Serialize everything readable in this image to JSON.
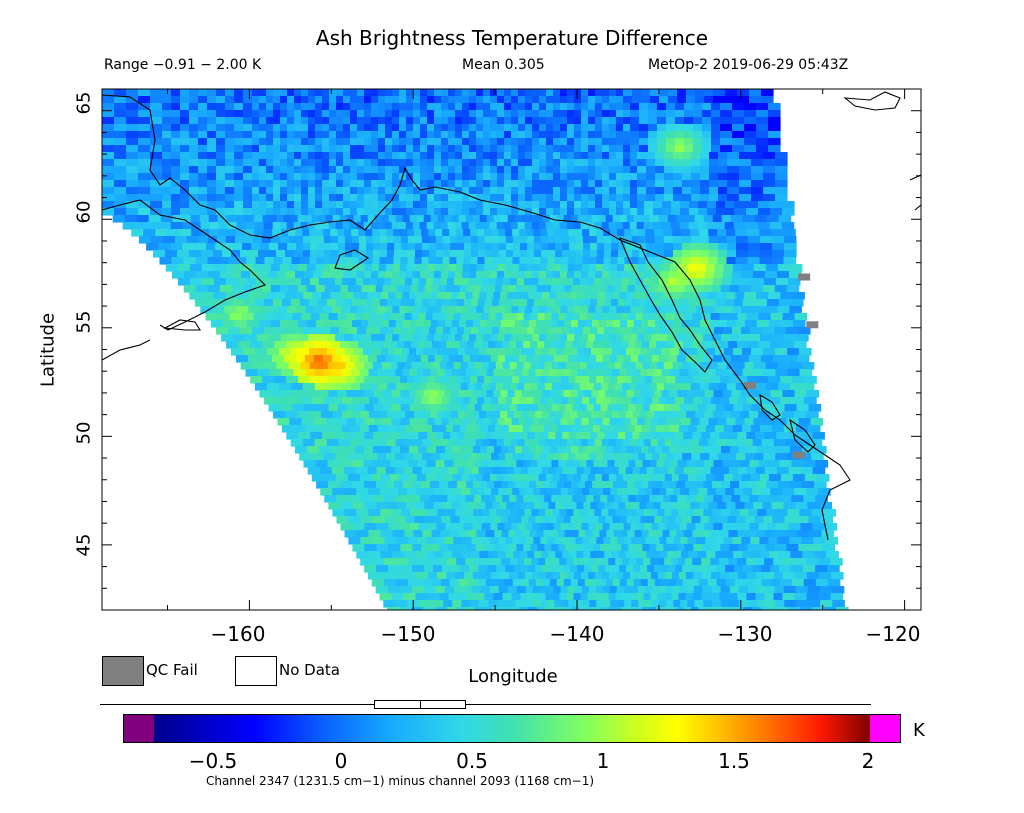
{
  "header": {
    "title": "Ash Brightness Temperature Difference",
    "range": "Range −0.91 − 2.00 K",
    "mean": "Mean 0.305",
    "satellite": "MetOp-2 2019-06-29 05:43Z"
  },
  "axes": {
    "xlabel": "Longitude",
    "ylabel": "Latitude",
    "xticks": [
      "−160",
      "−150",
      "−140",
      "−130",
      "−120"
    ],
    "yticks": [
      "45",
      "50",
      "55",
      "60",
      "65"
    ]
  },
  "legend": {
    "qc_fail": "QC Fail",
    "no_data": "No Data",
    "qc_fail_color": "#808080",
    "no_data_color": "#ffffff"
  },
  "colorbar": {
    "ticks": [
      "−0.5",
      "0",
      "0.5",
      "1",
      "1.5",
      "2"
    ],
    "unit": "K",
    "under_color": "#800080",
    "over_color": "#ff00ff",
    "channel_note": "Channel 2347 (1231.5 cm−1) minus channel 2093 (1168 cm−1)"
  },
  "map": {
    "lon_range": [
      -169,
      -119
    ],
    "lat_range": [
      42,
      66
    ],
    "value_range": [
      -0.75,
      2.0
    ],
    "background_value": 0.45,
    "hotspots": [
      {
        "lon": -156,
        "lat": 53.6,
        "value": 1.7
      },
      {
        "lon": -155,
        "lat": 53.4,
        "value": 1.5
      },
      {
        "lon": -157.5,
        "lat": 53.9,
        "value": 1.3
      },
      {
        "lon": -133,
        "lat": 57.9,
        "value": 1.3
      },
      {
        "lon": -134.3,
        "lat": 57.3,
        "value": 1.1
      },
      {
        "lon": -161,
        "lat": 55.8,
        "value": 1.0
      },
      {
        "lon": -149,
        "lat": 52.0,
        "value": 1.0
      },
      {
        "lon": -134,
        "lat": 63.5,
        "value": 1.0
      }
    ]
  }
}
